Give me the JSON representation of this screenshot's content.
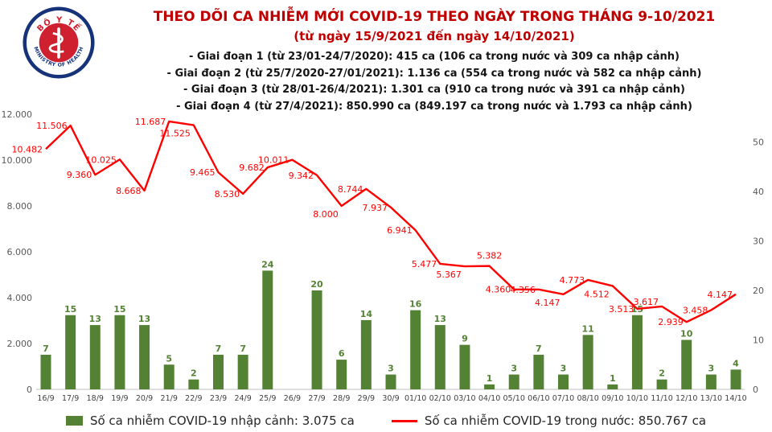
{
  "header": {
    "title": "THEO DÕI CA NHIỄM MỚI COVID-19 THEO NGÀY TRONG THÁNG 9-10/2021",
    "subtitle": "(từ ngày 15/9/2021 đến ngày 14/10/2021)",
    "stages": [
      "- Giai đoạn 1 (từ 23/01-24/7/2020): 415 ca (106 ca trong nước và 309 ca nhập cảnh)",
      "- Giai đoạn 2 (từ 25/7/2020-27/01/2021): 1.136 ca (554 ca trong nước và 582 ca nhập cảnh)",
      "- Giai đoạn 3 (từ 28/01-26/4/2021): 1.301 ca (910 ca trong nước và 391 ca nhập cảnh)",
      "- Giai đoạn 4 (từ 27/4/2021): 850.990 ca (849.197 ca trong nước và 1.793 ca nhập cảnh)"
    ],
    "logo": {
      "top_text": "BỘ Y TẾ",
      "bottom_text": "MINISTRY OF HEALTH"
    }
  },
  "colors": {
    "title": "#c00000",
    "bar": "#548235",
    "line": "#ff0000",
    "axis_line": "#bfbfbf"
  },
  "chart_data": {
    "type": "bar+line",
    "title": "THEO DÕI CA NHIỄM MỚI COVID-19 THEO NGÀY TRONG THÁNG 9-10/2021",
    "grid": false,
    "legend_position": "bottom",
    "categories": [
      "16/9",
      "17/9",
      "18/9",
      "19/9",
      "20/9",
      "21/9",
      "22/9",
      "23/9",
      "24/9",
      "25/9",
      "26/9",
      "27/9",
      "28/9",
      "29/9",
      "30/9",
      "01/10",
      "02/10",
      "03/10",
      "04/10",
      "05/10",
      "06/10",
      "07/10",
      "08/10",
      "09/10",
      "10/10",
      "11/10",
      "12/10",
      "13/10",
      "14/10"
    ],
    "series": [
      {
        "name": "Số ca nhiễm COVID-19 nhập cảnh",
        "type": "bar",
        "axis": "right",
        "color": "#548235",
        "values": [
          7,
          15,
          13,
          15,
          13,
          5,
          2,
          7,
          7,
          24,
          0,
          20,
          6,
          14,
          3,
          16,
          13,
          9,
          1,
          3,
          7,
          3,
          11,
          1,
          15,
          2,
          10,
          3,
          4
        ]
      },
      {
        "name": "Số ca nhiễm COVID-19 trong nước",
        "type": "line",
        "axis": "left",
        "color": "#ff0000",
        "values": [
          10482,
          11506,
          9360,
          10025,
          8668,
          11687,
          11525,
          9465,
          8530,
          9682,
          10011,
          9342,
          8000,
          8744,
          7937,
          6941,
          5477,
          5367,
          5382,
          4360,
          4356,
          4147,
          4773,
          4512,
          3513,
          3617,
          2939,
          3458,
          4147
        ],
        "labels": [
          "10.482",
          "11.506",
          "9.360",
          "10.025",
          "8.668",
          "11.687",
          "11.525",
          "9.465",
          "8.530",
          "9.682",
          "10.011",
          "9.342",
          "8.000",
          "8.744",
          "7.937",
          "6.941",
          "5.477",
          "5.367",
          "5.382",
          "4.360",
          "4.356",
          "4.147",
          "4.773",
          "4.512",
          "3.513",
          "3.617",
          "2.939",
          "3.458",
          "4.147"
        ],
        "label_pos": [
          "left",
          "left",
          "left",
          "left",
          "left",
          "left",
          "below-left",
          "left",
          "left",
          "left",
          "left",
          "left",
          "below-left",
          "left",
          "left",
          "left",
          "left",
          "below-left",
          "above",
          "left",
          "left",
          "below-left",
          "left",
          "below-left",
          "left",
          "left-up",
          "left",
          "left",
          "left"
        ]
      }
    ],
    "left_axis": {
      "min": 0,
      "max": 12000,
      "tick_step": 2000,
      "tick_labels": [
        "0",
        "2.000",
        "4.000",
        "6.000",
        "8.000",
        "10.000",
        "12.000"
      ]
    },
    "right_axis": {
      "min": 0,
      "max": 55,
      "tick_step": 10,
      "tick_labels": [
        "0",
        "10",
        "20",
        "30",
        "40",
        "50"
      ]
    },
    "legend": [
      {
        "swatch": "bar",
        "color": "#548235",
        "label": "Số ca nhiễm COVID-19 nhập cảnh: 3.075 ca"
      },
      {
        "swatch": "line",
        "color": "#ff0000",
        "label": "Số ca nhiễm COVID-19 trong nước: 850.767 ca"
      }
    ]
  }
}
